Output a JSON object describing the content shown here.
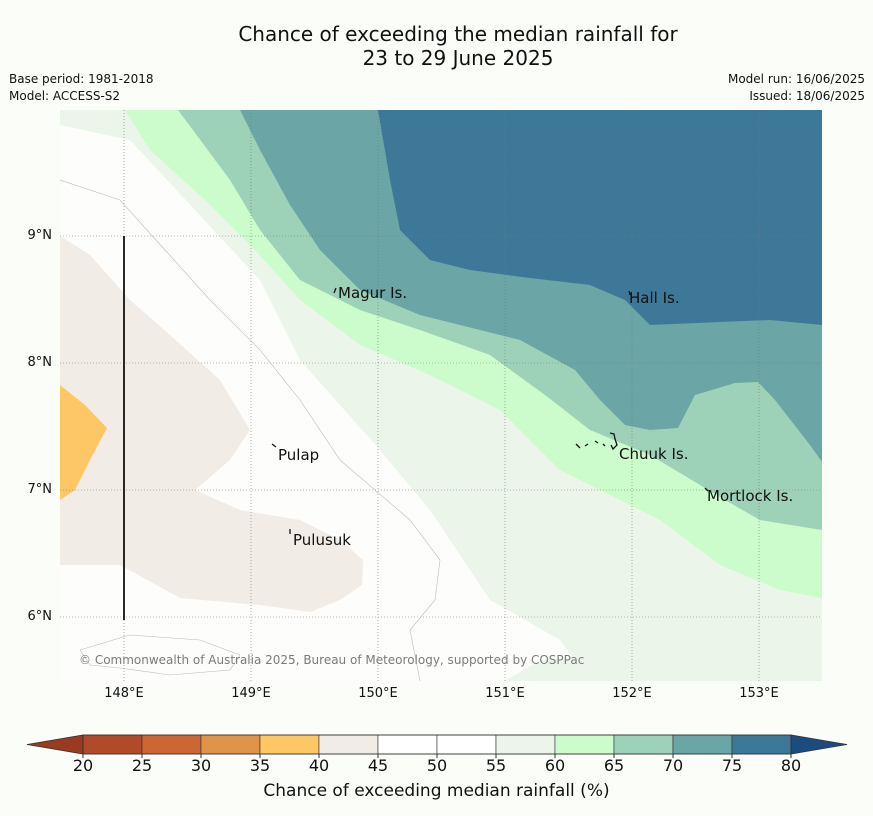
{
  "title_line1": "Chance of exceeding the median rainfall for",
  "title_line2": "23 to 29 June 2025",
  "base_period": "Base period: 1981-2018",
  "model": "Model: ACCESS-S2",
  "model_run": "Model run: 16/06/2025",
  "issued": "Issued: 18/06/2025",
  "latitudes": [
    "9°N",
    "8°N",
    "7°N",
    "6°N"
  ],
  "longitudes": [
    "148°E",
    "149°E",
    "150°E",
    "151°E",
    "152°E",
    "153°E"
  ],
  "places": [
    "Magur Is.",
    "Hall Is.",
    "Pulap",
    "Chuuk Is.",
    "Pulusuk",
    "Mortlock Is."
  ],
  "copyright": "© Commonwealth of Australia 2025, Bureau of Meteorology, supported by COSPPac",
  "colorbar": {
    "ticks": [
      "20",
      "25",
      "30",
      "35",
      "40",
      "45",
      "50",
      "55",
      "60",
      "65",
      "70",
      "75",
      "80"
    ],
    "colors": [
      "#b04a2a",
      "#cc6633",
      "#e0944a",
      "#fec766",
      "#f2ece6",
      "#ffffff",
      "#ffffff",
      "#ecf5ea",
      "#ccfccc",
      "#9ed2b8",
      "#6ba5a5",
      "#3e7898"
    ],
    "under_color": "#9a3a20",
    "over_color": "#1b4c80",
    "label": "Chance of exceeding median rainfall (%)"
  },
  "map_colors": {
    "c35": "#fec766",
    "c40": "#f2ece6",
    "c45": "#fdfdfb",
    "c55": "#ecf5ea",
    "c60": "#ccfccc",
    "c65": "#9ed2b8",
    "c70": "#6ba5a5",
    "c75": "#3e7898"
  }
}
